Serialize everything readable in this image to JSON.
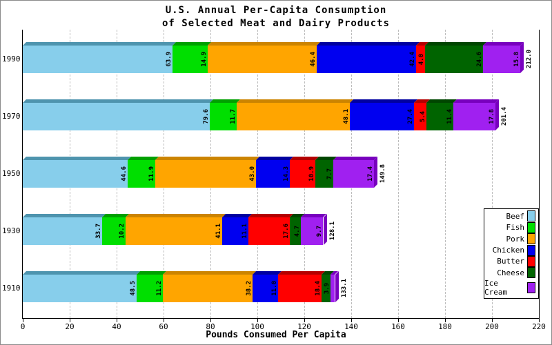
{
  "title_lines": [
    "U.S. Annual Per-Capita Consumption",
    "of Selected Meat and Dairy Products"
  ],
  "chart_data": {
    "type": "bar",
    "orientation": "horizontal",
    "stacked": true,
    "style": "3d-beveled",
    "title": "U.S. Annual Per-Capita Consumption of Selected Meat and Dairy Products",
    "xlabel": "Pounds Consumed Per Capita",
    "xlim": [
      0,
      220
    ],
    "xticks": [
      0,
      20,
      40,
      60,
      80,
      100,
      120,
      140,
      160,
      180,
      200,
      220
    ],
    "grid": "vertical-dashed",
    "legend_position": "right-inside-box",
    "categories": [
      "1990",
      "1970",
      "1950",
      "1930",
      "1910"
    ],
    "series": [
      {
        "name": "Beef",
        "color": "#87CEEB",
        "dark": "#4E94AE",
        "values": [
          63.9,
          79.6,
          44.6,
          33.7,
          48.5
        ]
      },
      {
        "name": "Fish",
        "color": "#00DF00",
        "dark": "#00A000",
        "values": [
          14.9,
          11.7,
          11.9,
          10.2,
          11.2
        ]
      },
      {
        "name": "Pork",
        "color": "#FFA500",
        "dark": "#CC8400",
        "values": [
          46.4,
          48.1,
          43.0,
          41.1,
          38.2
        ]
      },
      {
        "name": "Chicken",
        "color": "#0000F0",
        "dark": "#0000A0",
        "values": [
          42.4,
          27.4,
          14.3,
          11.1,
          11.0
        ]
      },
      {
        "name": "Butter",
        "color": "#FF0000",
        "dark": "#B40000",
        "values": [
          4.0,
          5.4,
          10.9,
          17.6,
          18.4
        ]
      },
      {
        "name": "Cheese",
        "color": "#006400",
        "dark": "#004600",
        "values": [
          24.6,
          11.4,
          7.7,
          4.7,
          3.9
        ]
      },
      {
        "name": "Ice Cream",
        "color": "#A020F0",
        "dark": "#7800BE",
        "values": [
          15.8,
          17.8,
          17.4,
          9.7,
          1.9
        ]
      }
    ],
    "totals": [
      "212.0",
      "201.4",
      "149.8",
      "128.1",
      "133.1"
    ],
    "note": "segment values are printed inside each segment rotated 90°; the 1.9 Ice Cream segment in 1910 is too small to carry a printed label"
  }
}
